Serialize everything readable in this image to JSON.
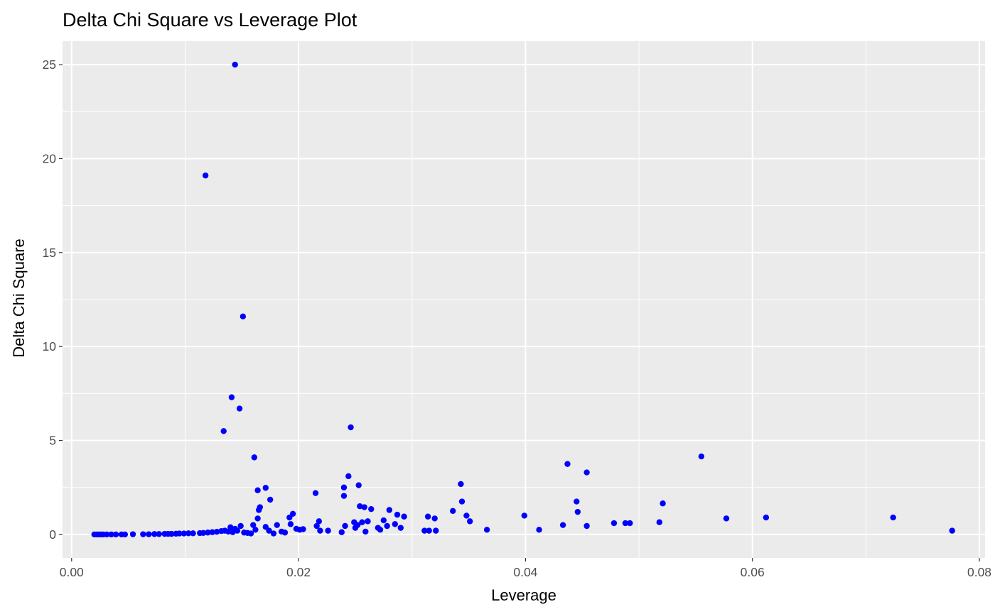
{
  "chart_data": {
    "type": "scatter",
    "title": "Delta Chi Square vs Leverage Plot",
    "xlabel": "Leverage",
    "ylabel": "Delta Chi Square",
    "xlim": [
      -0.0008,
      0.0805
    ],
    "ylim": [
      -1.25,
      26.25
    ],
    "x_ticks": [
      0.0,
      0.02,
      0.04,
      0.06,
      0.08
    ],
    "x_tick_labels": [
      "0.00",
      "0.02",
      "0.04",
      "0.06",
      "0.08"
    ],
    "y_ticks": [
      0,
      5,
      10,
      15,
      20,
      25
    ],
    "y_tick_labels": [
      "0",
      "5",
      "10",
      "15",
      "20",
      "25"
    ],
    "grid": true,
    "panel_color": "#ebebeb",
    "point_color": "#0000ff",
    "series": [
      {
        "points": [
          [
            0.002,
            0.0
          ],
          [
            0.0022,
            0.0
          ],
          [
            0.0024,
            0.0
          ],
          [
            0.0026,
            0.0
          ],
          [
            0.0028,
            0.0
          ],
          [
            0.0031,
            0.0
          ],
          [
            0.0035,
            0.0
          ],
          [
            0.0039,
            0.0
          ],
          [
            0.0044,
            0.0
          ],
          [
            0.0047,
            0.0
          ],
          [
            0.0054,
            0.01
          ],
          [
            0.0063,
            0.01
          ],
          [
            0.0068,
            0.01
          ],
          [
            0.0073,
            0.02
          ],
          [
            0.0077,
            0.02
          ],
          [
            0.0082,
            0.03
          ],
          [
            0.0085,
            0.03
          ],
          [
            0.0088,
            0.03
          ],
          [
            0.0092,
            0.04
          ],
          [
            0.0095,
            0.05
          ],
          [
            0.0099,
            0.05
          ],
          [
            0.0103,
            0.06
          ],
          [
            0.0107,
            0.06
          ],
          [
            0.0113,
            0.07
          ],
          [
            0.0116,
            0.08
          ],
          [
            0.012,
            0.1
          ],
          [
            0.0124,
            0.12
          ],
          [
            0.0128,
            0.14
          ],
          [
            0.0132,
            0.18
          ],
          [
            0.0135,
            0.2
          ],
          [
            0.0138,
            0.15
          ],
          [
            0.014,
            0.38
          ],
          [
            0.0142,
            0.12
          ],
          [
            0.0144,
            0.3
          ],
          [
            0.0146,
            0.2
          ],
          [
            0.0149,
            0.45
          ],
          [
            0.0152,
            0.1
          ],
          [
            0.0155,
            0.08
          ],
          [
            0.0158,
            0.05
          ],
          [
            0.016,
            0.5
          ],
          [
            0.0162,
            0.25
          ],
          [
            0.0118,
            19.1
          ],
          [
            0.0144,
            25.0
          ],
          [
            0.0151,
            11.6
          ],
          [
            0.0141,
            7.3
          ],
          [
            0.0148,
            6.7
          ],
          [
            0.0134,
            5.5
          ],
          [
            0.0161,
            4.1
          ],
          [
            0.0164,
            2.35
          ],
          [
            0.0166,
            1.45
          ],
          [
            0.0165,
            1.3
          ],
          [
            0.0164,
            0.85
          ],
          [
            0.0171,
            2.48
          ],
          [
            0.0175,
            1.85
          ],
          [
            0.0171,
            0.4
          ],
          [
            0.0174,
            0.2
          ],
          [
            0.0178,
            0.05
          ],
          [
            0.0181,
            0.5
          ],
          [
            0.0185,
            0.15
          ],
          [
            0.0188,
            0.1
          ],
          [
            0.0192,
            0.9
          ],
          [
            0.0193,
            0.55
          ],
          [
            0.0195,
            1.1
          ],
          [
            0.0198,
            0.3
          ],
          [
            0.0201,
            0.25
          ],
          [
            0.0204,
            0.28
          ],
          [
            0.0215,
            2.2
          ],
          [
            0.0216,
            0.45
          ],
          [
            0.0218,
            0.7
          ],
          [
            0.0219,
            0.2
          ],
          [
            0.0226,
            0.2
          ],
          [
            0.0238,
            0.12
          ],
          [
            0.024,
            2.5
          ],
          [
            0.024,
            2.05
          ],
          [
            0.0241,
            0.45
          ],
          [
            0.0244,
            3.1
          ],
          [
            0.0246,
            5.7
          ],
          [
            0.0249,
            0.65
          ],
          [
            0.025,
            0.35
          ],
          [
            0.0252,
            0.5
          ],
          [
            0.0253,
            2.62
          ],
          [
            0.0254,
            1.5
          ],
          [
            0.0256,
            0.65
          ],
          [
            0.0258,
            1.45
          ],
          [
            0.0259,
            0.15
          ],
          [
            0.0261,
            0.7
          ],
          [
            0.0264,
            1.35
          ],
          [
            0.027,
            0.35
          ],
          [
            0.0272,
            0.25
          ],
          [
            0.0275,
            0.75
          ],
          [
            0.0278,
            0.45
          ],
          [
            0.028,
            1.3
          ],
          [
            0.0285,
            0.55
          ],
          [
            0.0287,
            1.05
          ],
          [
            0.029,
            0.35
          ],
          [
            0.0293,
            0.95
          ],
          [
            0.0311,
            0.2
          ],
          [
            0.0314,
            0.95
          ],
          [
            0.0315,
            0.2
          ],
          [
            0.032,
            0.85
          ],
          [
            0.0321,
            0.2
          ],
          [
            0.0336,
            1.25
          ],
          [
            0.0343,
            2.68
          ],
          [
            0.0344,
            1.75
          ],
          [
            0.0348,
            1.0
          ],
          [
            0.0351,
            0.7
          ],
          [
            0.0366,
            0.25
          ],
          [
            0.0399,
            1.0
          ],
          [
            0.0412,
            0.25
          ],
          [
            0.0433,
            0.5
          ],
          [
            0.0437,
            3.75
          ],
          [
            0.0445,
            1.75
          ],
          [
            0.0446,
            1.2
          ],
          [
            0.0454,
            3.3
          ],
          [
            0.0454,
            0.45
          ],
          [
            0.0478,
            0.6
          ],
          [
            0.0488,
            0.6
          ],
          [
            0.0492,
            0.6
          ],
          [
            0.0518,
            0.65
          ],
          [
            0.0521,
            1.65
          ],
          [
            0.0555,
            4.15
          ],
          [
            0.0577,
            0.85
          ],
          [
            0.0612,
            0.9
          ],
          [
            0.0724,
            0.9
          ],
          [
            0.0776,
            0.2
          ]
        ]
      }
    ]
  }
}
